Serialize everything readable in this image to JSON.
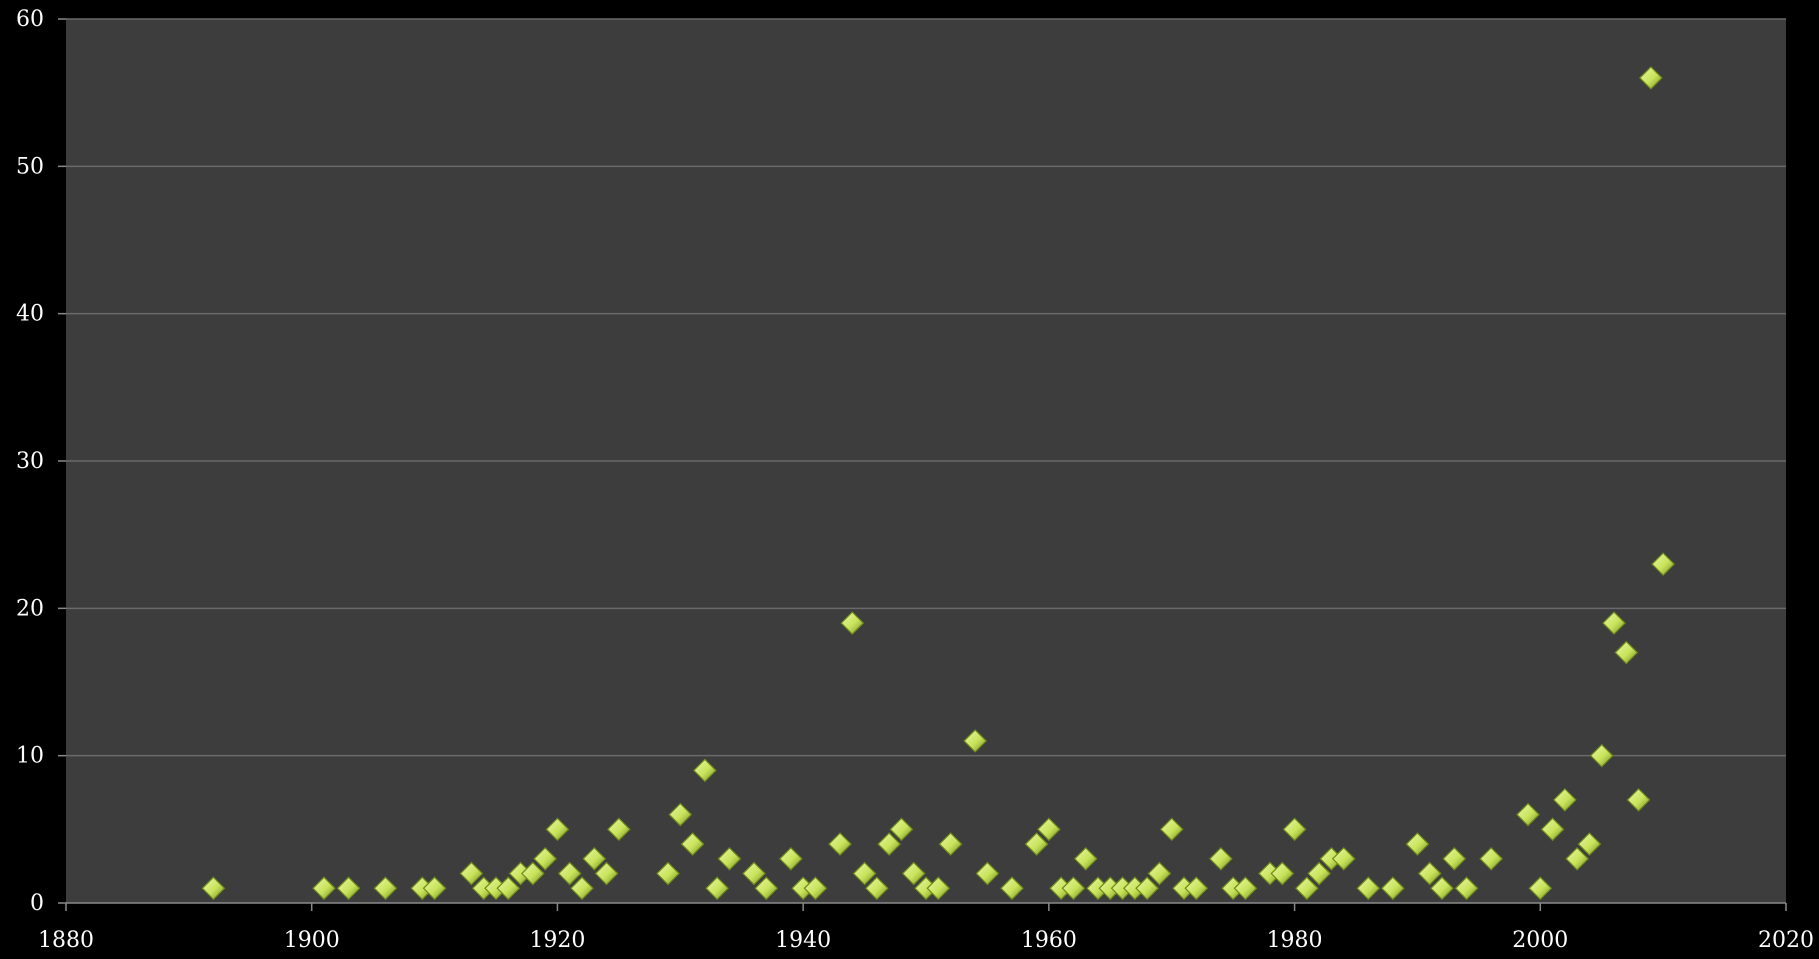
{
  "colors": {
    "page_background": "#000000",
    "plot_background": "#3d3d3d",
    "gridline": "#6a6a6a",
    "marker_fill": "#c8e35a",
    "marker_highlight": "#eaf7a8",
    "marker_edge": "#6f8a1c"
  },
  "chart_data": {
    "type": "scatter",
    "title": "",
    "xlabel": "",
    "ylabel": "",
    "xlim": [
      1880,
      2020
    ],
    "ylim": [
      0,
      60
    ],
    "x_ticks": [
      "1880",
      "1900",
      "1920",
      "1940",
      "1960",
      "1980",
      "2000",
      "2020"
    ],
    "y_ticks": [
      "0",
      "10",
      "20",
      "30",
      "40",
      "50",
      "60"
    ],
    "grid": "horizontal",
    "legend": "none",
    "marker": "diamond",
    "series": [
      {
        "points": [
          [
            1892,
            1
          ],
          [
            1901,
            1
          ],
          [
            1903,
            1
          ],
          [
            1906,
            1
          ],
          [
            1909,
            1
          ],
          [
            1910,
            1
          ],
          [
            1913,
            2
          ],
          [
            1914,
            1
          ],
          [
            1915,
            1
          ],
          [
            1916,
            1
          ],
          [
            1917,
            2
          ],
          [
            1918,
            2
          ],
          [
            1919,
            3
          ],
          [
            1920,
            5
          ],
          [
            1921,
            2
          ],
          [
            1922,
            1
          ],
          [
            1923,
            3
          ],
          [
            1924,
            2
          ],
          [
            1925,
            5
          ],
          [
            1929,
            2
          ],
          [
            1930,
            6
          ],
          [
            1931,
            4
          ],
          [
            1932,
            9
          ],
          [
            1933,
            1
          ],
          [
            1934,
            3
          ],
          [
            1936,
            2
          ],
          [
            1937,
            1
          ],
          [
            1939,
            3
          ],
          [
            1940,
            1
          ],
          [
            1941,
            1
          ],
          [
            1943,
            4
          ],
          [
            1944,
            19
          ],
          [
            1945,
            2
          ],
          [
            1946,
            1
          ],
          [
            1947,
            4
          ],
          [
            1948,
            5
          ],
          [
            1949,
            2
          ],
          [
            1950,
            1
          ],
          [
            1951,
            1
          ],
          [
            1952,
            4
          ],
          [
            1954,
            11
          ],
          [
            1955,
            2
          ],
          [
            1957,
            1
          ],
          [
            1959,
            4
          ],
          [
            1960,
            5
          ],
          [
            1961,
            1
          ],
          [
            1962,
            1
          ],
          [
            1963,
            3
          ],
          [
            1964,
            1
          ],
          [
            1965,
            1
          ],
          [
            1966,
            1
          ],
          [
            1967,
            1
          ],
          [
            1968,
            1
          ],
          [
            1969,
            2
          ],
          [
            1970,
            5
          ],
          [
            1971,
            1
          ],
          [
            1972,
            1
          ],
          [
            1974,
            3
          ],
          [
            1975,
            1
          ],
          [
            1976,
            1
          ],
          [
            1978,
            2
          ],
          [
            1979,
            2
          ],
          [
            1980,
            5
          ],
          [
            1981,
            1
          ],
          [
            1982,
            2
          ],
          [
            1983,
            3
          ],
          [
            1984,
            3
          ],
          [
            1986,
            1
          ],
          [
            1988,
            1
          ],
          [
            1990,
            4
          ],
          [
            1991,
            2
          ],
          [
            1992,
            1
          ],
          [
            1993,
            3
          ],
          [
            1994,
            1
          ],
          [
            1996,
            3
          ],
          [
            1999,
            6
          ],
          [
            2000,
            1
          ],
          [
            2001,
            5
          ],
          [
            2002,
            7
          ],
          [
            2003,
            3
          ],
          [
            2004,
            4
          ],
          [
            2005,
            10
          ],
          [
            2006,
            19
          ],
          [
            2007,
            17
          ],
          [
            2008,
            7
          ],
          [
            2009,
            56
          ],
          [
            2010,
            23
          ]
        ]
      }
    ]
  }
}
